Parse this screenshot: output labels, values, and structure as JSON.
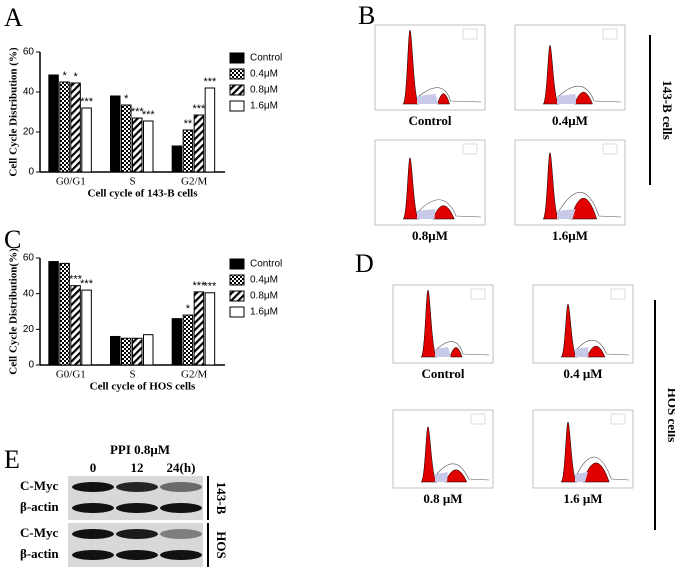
{
  "chart_data": [
    {
      "type": "bar",
      "panel_label": "A",
      "y_label": "Cell Cycle Distribution (%)",
      "x_label": "Cell cycle of 143-B cells",
      "categories": [
        "G0/G1",
        "S",
        "G2/M"
      ],
      "ylim": [
        0,
        60
      ],
      "yticks": [
        0,
        20,
        40,
        60
      ],
      "series": [
        {
          "name": "Control",
          "color": "#000000",
          "pattern": "solid",
          "values": [
            48.5,
            38,
            13
          ]
        },
        {
          "name": "0.4μM",
          "color": "#000000",
          "pattern": "checker",
          "values": [
            45,
            33.5,
            21
          ],
          "significance": [
            "*",
            "*",
            "**"
          ]
        },
        {
          "name": "0.8μM",
          "color": "#000000",
          "pattern": "hatch",
          "values": [
            44.5,
            27,
            28.5
          ],
          "significance": [
            "*",
            "***",
            "***"
          ]
        },
        {
          "name": "1.6μM",
          "color": "#000000",
          "pattern": "open",
          "values": [
            32,
            25.5,
            42
          ],
          "significance": [
            "***",
            "***",
            "***"
          ]
        }
      ]
    },
    {
      "type": "bar",
      "panel_label": "C",
      "y_label": "Cell Cycle Distribution(%)",
      "x_label": "Cell cycle of HOS cells",
      "categories": [
        "G0/G1",
        "S",
        "G2/M"
      ],
      "ylim": [
        0,
        60
      ],
      "yticks": [
        0,
        20,
        40,
        60
      ],
      "series": [
        {
          "name": "Control",
          "color": "#000000",
          "pattern": "solid",
          "values": [
            58,
            16,
            26
          ]
        },
        {
          "name": "0.4μM",
          "color": "#000000",
          "pattern": "checker",
          "values": [
            57,
            15,
            28
          ],
          "significance": [
            null,
            null,
            "*"
          ]
        },
        {
          "name": "0.8μM",
          "color": "#000000",
          "pattern": "hatch",
          "values": [
            44.5,
            15,
            41
          ],
          "significance": [
            "***",
            null,
            "***"
          ]
        },
        {
          "name": "1.6μM",
          "color": "#000000",
          "pattern": "open",
          "values": [
            42,
            17,
            40.5
          ],
          "significance": [
            "***",
            null,
            "***"
          ]
        }
      ]
    }
  ],
  "panel_b": {
    "label": "B",
    "conditions": [
      "Control",
      "0.4μM",
      "0.8μM",
      "1.6μM"
    ],
    "cell_line": "143-B cells"
  },
  "panel_d": {
    "label": "D",
    "conditions": [
      "Control",
      "0.4 μM",
      "0.8 μM",
      "1.6 μM"
    ],
    "cell_line": "HOS cells"
  },
  "panel_e": {
    "label": "E",
    "treatment": "PPI  0.8μM",
    "lanes": [
      "0",
      "12",
      "24(h)"
    ],
    "blots": [
      {
        "cell_line": "143-B",
        "rows": [
          "C-Myc",
          "β-actin"
        ]
      },
      {
        "cell_line": "HOS",
        "rows": [
          "C-Myc",
          "β-actin"
        ]
      }
    ]
  }
}
